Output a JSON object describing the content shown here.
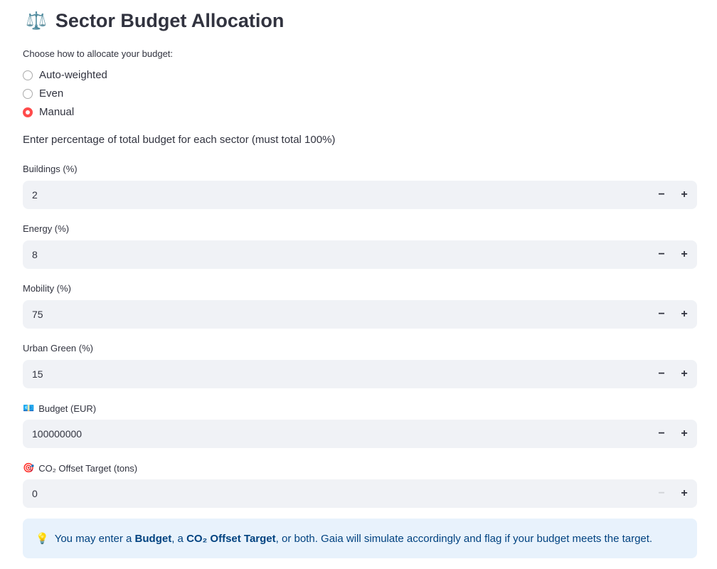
{
  "header": {
    "icon": "balance-scale-icon",
    "icon_glyph": "⚖️",
    "title": "Sector Budget Allocation"
  },
  "allocation": {
    "label": "Choose how to allocate your budget:",
    "options": [
      {
        "label": "Auto-weighted",
        "selected": false
      },
      {
        "label": "Even",
        "selected": false
      },
      {
        "label": "Manual",
        "selected": true
      }
    ],
    "accent": "#ff4b4b"
  },
  "intro": "Enter percentage of total budget for each sector (must total 100%)",
  "fields": [
    {
      "label": "Buildings (%)",
      "value": "2"
    },
    {
      "label": "Energy (%)",
      "value": "8"
    },
    {
      "label": "Mobility (%)",
      "value": "75"
    },
    {
      "label": "Urban Green (%)",
      "value": "15"
    },
    {
      "label": "Budget (EUR)",
      "icon": "money-icon",
      "icon_glyph": "💶",
      "value": "100000000"
    },
    {
      "label": "CO₂ Offset Target (tons)",
      "icon": "target-icon",
      "icon_glyph": "🎯",
      "value": "0",
      "minus_disabled": true
    }
  ],
  "stepper": {
    "minus": "−",
    "plus": "+"
  },
  "info": {
    "icon": "lightbulb-icon",
    "icon_glyph": "💡",
    "t1": "You may enter a ",
    "b1": "Budget",
    "t2": ", a ",
    "b2": "CO₂ Offset Target",
    "t3": ", or both. Gaia will simulate accordingly and flag if your budget meets the target."
  }
}
